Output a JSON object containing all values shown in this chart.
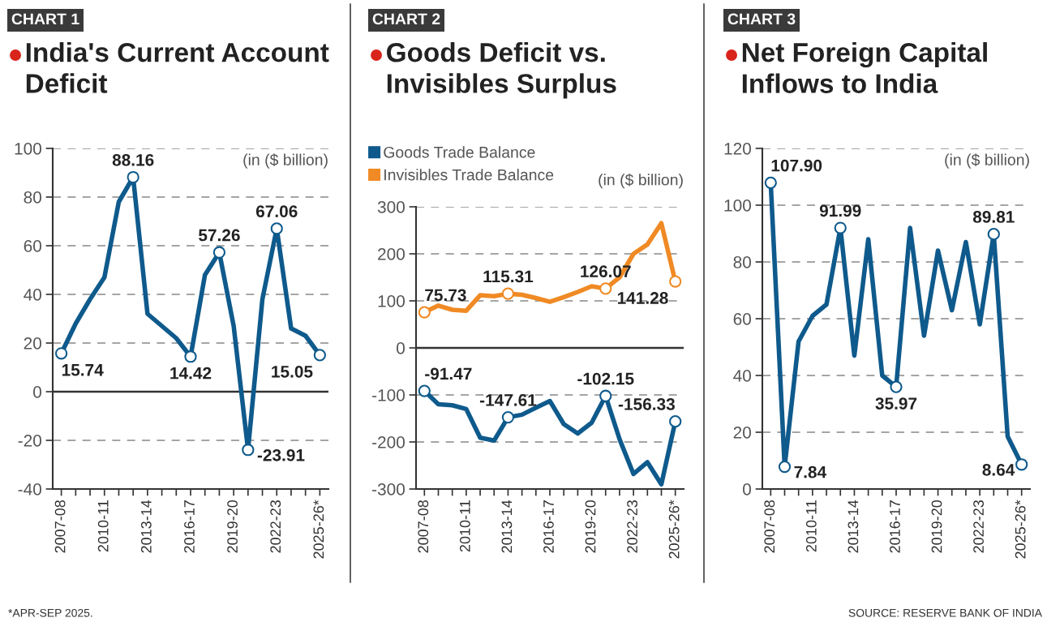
{
  "chart_data": [
    {
      "type": "line",
      "subtitle": "CHART 1",
      "title": "India's Current Account Deficit",
      "categories": [
        "2007-08",
        null,
        null,
        "2010-11",
        null,
        null,
        "2013-14",
        null,
        null,
        "2016-17",
        null,
        null,
        "2019-20",
        null,
        null,
        "2022-23",
        null,
        null,
        "2025-26*"
      ],
      "series": [
        {
          "color": "#0f5a8c",
          "values": [
            15.74,
            28,
            38,
            47,
            78,
            88.16,
            32,
            27,
            22,
            14.42,
            48,
            57.26,
            27,
            -23.91,
            38,
            67.06,
            26,
            23,
            15.05
          ],
          "value_labels": [
            "15.74",
            null,
            null,
            null,
            null,
            "88.16",
            null,
            null,
            null,
            "14.42",
            null,
            "57.26",
            null,
            "-23.91",
            null,
            "67.06",
            null,
            null,
            "15.05"
          ]
        }
      ],
      "ylim": [
        -40,
        100
      ],
      "yticks": [
        -40,
        -20,
        0,
        20,
        40,
        60,
        80,
        100
      ],
      "grid": "y",
      "ref_lines": [
        {
          "axis": "y",
          "value": 0,
          "color": "#333333",
          "line_style": "solid"
        }
      ],
      "annotations": [
        "(in ($ billion)",
        "*APR-SEP 2025."
      ]
    },
    {
      "type": "line",
      "subtitle": "CHART 2",
      "title": "Goods Deficit vs. Invisibles Surplus",
      "categories": [
        "2007-08",
        null,
        null,
        "2010-11",
        null,
        null,
        "2013-14",
        null,
        null,
        "2016-17",
        null,
        null,
        "2019-20",
        null,
        null,
        "2022-23",
        null,
        null,
        "2025-26*"
      ],
      "series": [
        {
          "name": "Goods Trade Balance",
          "color": "#0f5a8c",
          "values": [
            -91.47,
            -120,
            -122,
            -130,
            -191,
            -197,
            -147.61,
            -142,
            -127,
            -113,
            -162,
            -182,
            -159,
            -102.15,
            -194,
            -268,
            -243,
            -290,
            -156.33
          ],
          "value_labels": [
            "-91.47",
            null,
            null,
            null,
            null,
            null,
            "-147.61",
            null,
            null,
            null,
            null,
            null,
            null,
            "-102.15",
            null,
            null,
            null,
            null,
            "-156.33"
          ]
        },
        {
          "name": "Invisibles Trade Balance",
          "color": "#f08a24",
          "values": [
            75.73,
            90,
            81,
            79,
            112,
            110,
            115.31,
            113,
            106,
            98,
            108,
            119,
            131,
            126.07,
            150,
            200,
            220,
            265,
            141.28
          ],
          "value_labels": [
            "75.73",
            null,
            null,
            null,
            null,
            null,
            "115.31",
            null,
            null,
            null,
            null,
            null,
            null,
            "126.07",
            null,
            null,
            null,
            null,
            "141.28"
          ]
        }
      ],
      "ylim": [
        -300,
        300
      ],
      "yticks": [
        -300,
        -200,
        -100,
        0,
        100,
        200,
        300
      ],
      "grid": "y",
      "legend": "top left",
      "ref_lines": [
        {
          "axis": "y",
          "value": 0,
          "color": "#333333",
          "line_style": "solid"
        }
      ],
      "annotations": [
        "(in ($ billion)"
      ]
    },
    {
      "type": "line",
      "subtitle": "CHART 3",
      "title": "Net Foreign Capital Inflows to India",
      "categories": [
        "2007-08",
        null,
        null,
        "2010-11",
        null,
        null,
        "2013-14",
        null,
        null,
        "2016-17",
        null,
        null,
        "2019-20",
        null,
        null,
        "2022-23",
        null,
        null,
        "2025-26*"
      ],
      "series": [
        {
          "color": "#0f5a8c",
          "values": [
            107.9,
            7.84,
            52,
            61,
            65,
            91.99,
            47,
            88,
            40,
            35.97,
            92,
            54,
            84,
            63,
            87,
            58,
            89.81,
            18.5,
            8.64
          ],
          "value_labels": [
            "107.90",
            "7.84",
            null,
            null,
            null,
            "91.99",
            null,
            null,
            null,
            "35.97",
            null,
            null,
            null,
            null,
            null,
            null,
            "89.81",
            null,
            "8.64"
          ]
        }
      ],
      "ylim": [
        0,
        120
      ],
      "yticks": [
        0,
        20,
        40,
        60,
        80,
        100,
        120
      ],
      "grid": "y",
      "annotations": [
        "(in ($ billion)",
        "SOURCE: RESERVE BANK OF INDIA"
      ]
    }
  ]
}
